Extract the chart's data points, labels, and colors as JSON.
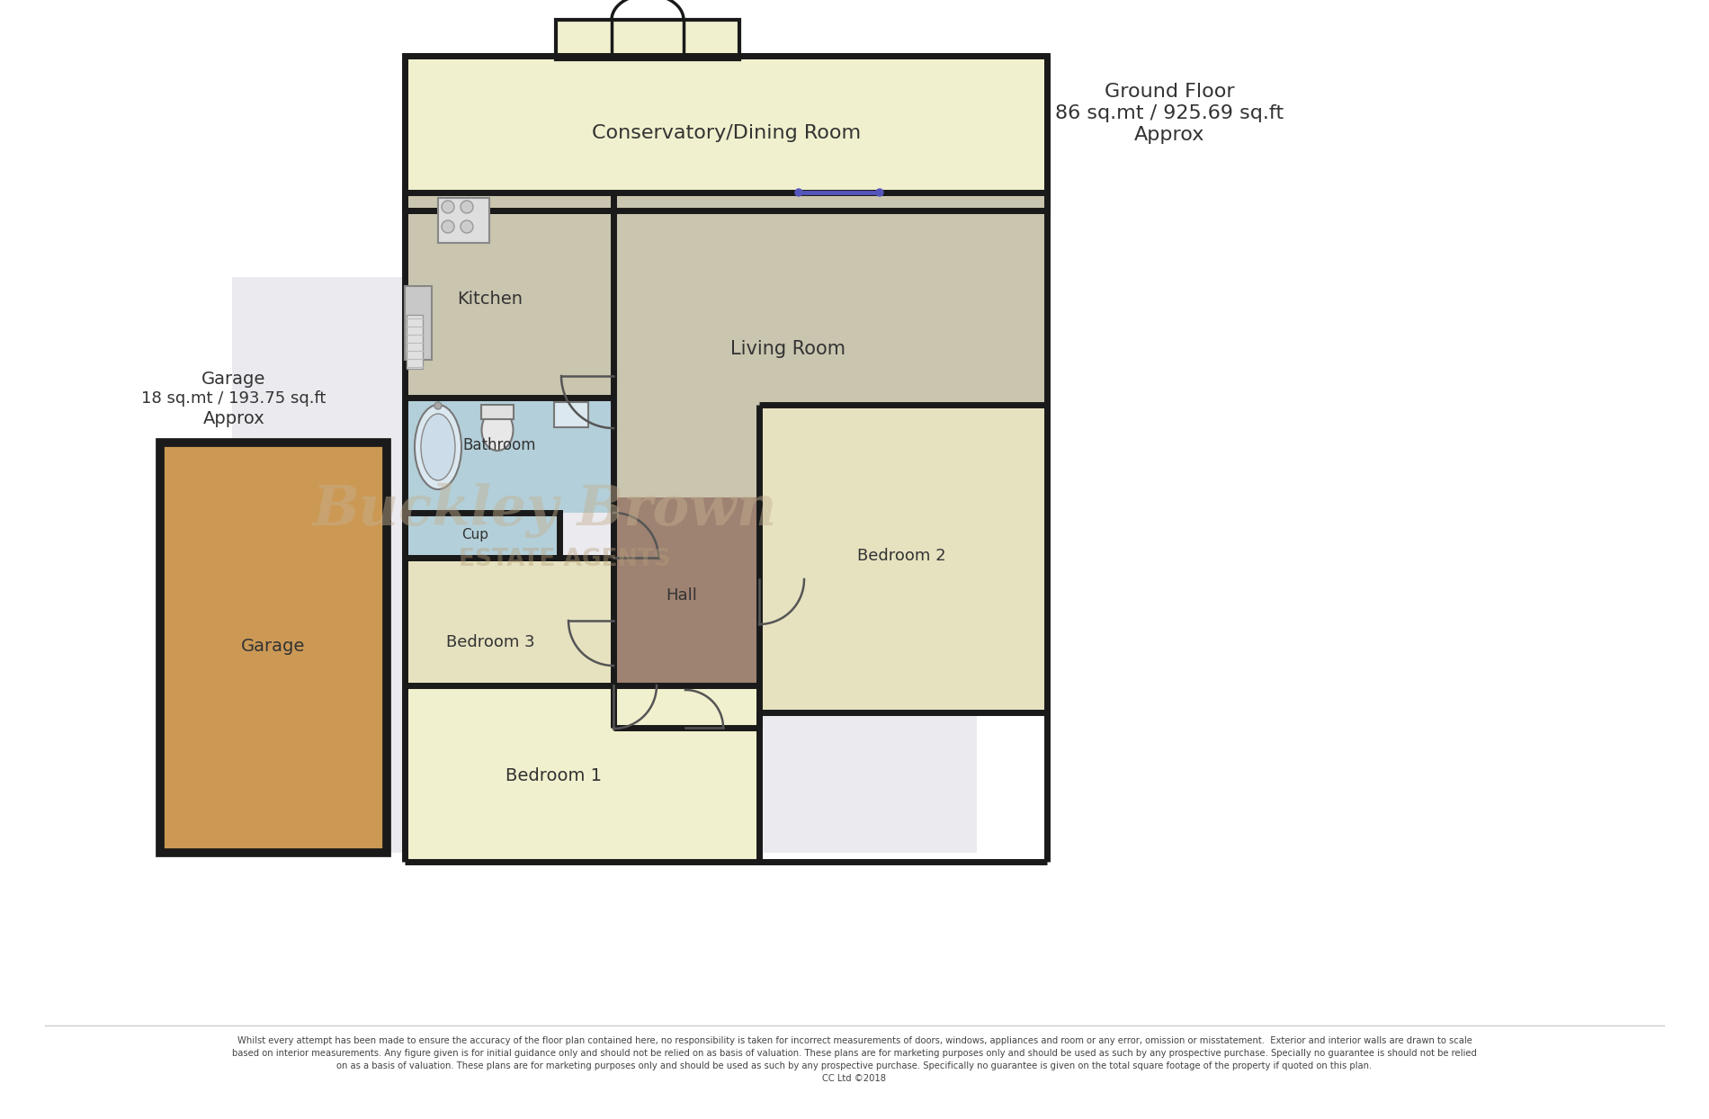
{
  "bg": "#ffffff",
  "wall": "#1a1a1a",
  "lw": 5,
  "colors": {
    "conservatory": "#f0f0ce",
    "kitchen": "#cac5af",
    "living": "#cac5af",
    "bathroom": "#b3cfd9",
    "bedroom3": "#e6e2c0",
    "bedroom2": "#e6e2c0",
    "bedroom1": "#f0f0ce",
    "hall": "#9e8272",
    "garage": "#cc9955",
    "wm_bg": "#b8b4c8"
  },
  "labels": {
    "conservatory": "Conservatory/Dining Room",
    "kitchen": "Kitchen",
    "living": "Living Room",
    "bathroom": "Bathroom",
    "cupboard": "Cup",
    "bedroom3": "Bedroom 3",
    "hall": "Hall",
    "bedroom2": "Bedroom 2",
    "bedroom1": "Bedroom 1",
    "garage": "Garage"
  },
  "info": {
    "gf1": "Ground Floor",
    "gf2": "86 sq.mt / 925.69 sq.ft",
    "gf3": "Approx",
    "gar1": "Garage",
    "gar2": "18 sq.mt / 193.75 sq.ft",
    "gar3": "Approx"
  },
  "wm": {
    "line1": "Buckley Brown",
    "line2": "ESTATE AGENTS"
  },
  "footer": "Whilst every attempt has been made to ensure the accuracy of the floor plan contained here, no responsibility is taken for incorrect measurements of doors, windows, appliances and room or any error, omission or misstatement.  Exterior and interior walls are drawn to scale\nbased on interior measurements. Any figure given is for initial guidance only and should not be relied on as basis of valuation. These plans are for marketing purposes only and should be used as such by any prospective purchase. Specially no guarantee is should not be relied\non as a basis of valuation. These plans are for marketing purposes only and should be used as such by any prospective purchase. Specifically no guarantee is given on the total square footage of the property if quoted on this plan.\nCC Ltd ©2018"
}
